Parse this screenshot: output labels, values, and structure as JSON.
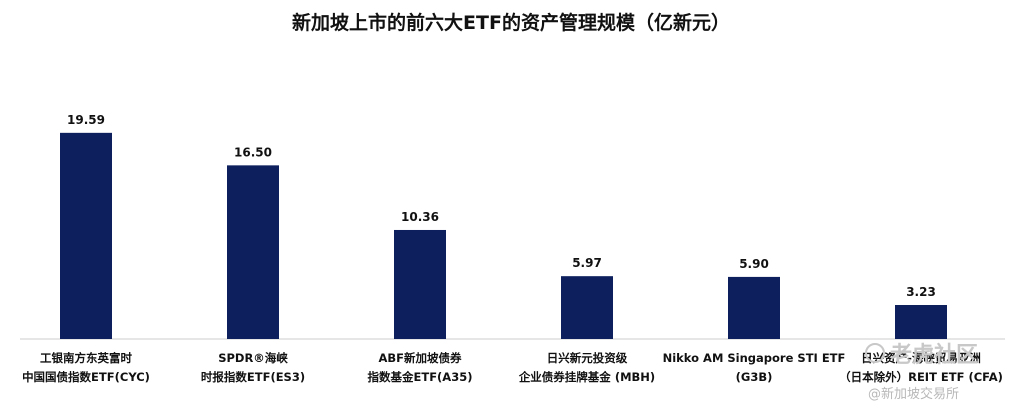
{
  "chart_data": {
    "type": "bar",
    "title": "新加坡上市的前六大ETF的资产管理规模（亿新元）",
    "xlabel": "",
    "ylabel": "",
    "ylim": [
      0,
      21
    ],
    "bar_color": "#0d1f5c",
    "categories": [
      [
        "工银南方东英富时",
        "中国国债指数ETF(CYC)"
      ],
      [
        "SPDR®海峡",
        "时报指数ETF(ES3)"
      ],
      [
        "ABF新加坡债券",
        "指数基金ETF(A35)"
      ],
      [
        "日兴新元投资级",
        "企业债券挂牌基金 (MBH)"
      ],
      [
        "Nikko AM Singapore STI ETF",
        "(G3B)"
      ],
      [
        "日兴资产-海峡贸易亚洲",
        "（日本除外）REIT ETF (CFA)"
      ]
    ],
    "values": [
      19.59,
      16.5,
      10.36,
      5.97,
      5.9,
      3.23
    ],
    "value_labels": [
      "19.59",
      "16.50",
      "10.36",
      "5.97",
      "5.90",
      "3.23"
    ]
  },
  "watermark": {
    "brand": "老虎社区",
    "handle": "@新加坡交易所"
  }
}
